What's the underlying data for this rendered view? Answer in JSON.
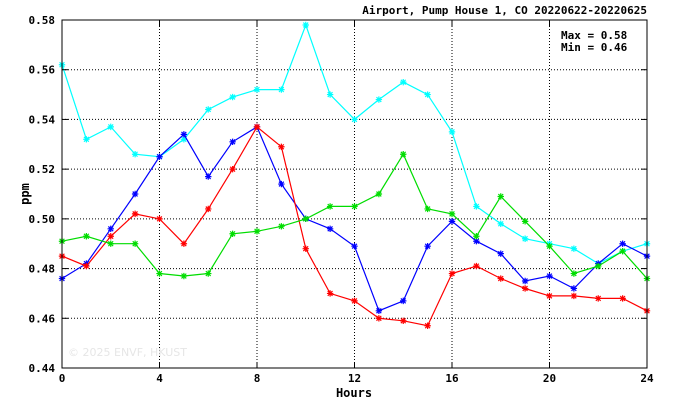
{
  "chart_data": {
    "type": "line",
    "title": "Airport, Pump House 1, CO 20220622-20220625",
    "xlabel": "Hours",
    "ylabel": "ppm",
    "xlim": [
      0,
      24
    ],
    "ylim": [
      0.44,
      0.58
    ],
    "xticks": [
      "0",
      "4",
      "8",
      "12",
      "16",
      "20",
      "24"
    ],
    "yticks": [
      "0.44",
      "0.46",
      "0.48",
      "0.50",
      "0.52",
      "0.54",
      "0.56",
      "0.58"
    ],
    "xtick_values": [
      0,
      4,
      8,
      12,
      16,
      20,
      24
    ],
    "ytick_values": [
      0.44,
      0.46,
      0.48,
      0.5,
      0.52,
      0.54,
      0.56,
      0.58
    ],
    "grid": true,
    "stats": {
      "max": "Max = 0.58",
      "min": "Min = 0.46"
    },
    "watermark": "© 2025 ENVF, HKUST",
    "x": [
      0,
      1,
      2,
      3,
      4,
      5,
      6,
      7,
      8,
      9,
      10,
      11,
      12,
      13,
      14,
      15,
      16,
      17,
      18,
      19,
      20,
      21,
      22,
      23,
      24
    ],
    "series": [
      {
        "color": "#00ffff",
        "values": [
          0.562,
          0.532,
          0.537,
          0.526,
          0.525,
          0.532,
          0.544,
          0.549,
          0.552,
          0.552,
          0.578,
          0.55,
          0.54,
          0.548,
          0.555,
          0.55,
          0.535,
          0.505,
          0.498,
          0.492,
          0.49,
          0.488,
          0.482,
          0.487,
          0.49
        ]
      },
      {
        "color": "#0000ff",
        "values": [
          0.476,
          0.482,
          0.496,
          0.51,
          0.525,
          0.534,
          0.517,
          0.531,
          0.537,
          0.514,
          0.5,
          0.496,
          0.489,
          0.463,
          0.467,
          0.489,
          0.499,
          0.491,
          0.486,
          0.475,
          0.477,
          0.472,
          0.482,
          0.49,
          0.485
        ]
      },
      {
        "color": "#ff0000",
        "values": [
          0.485,
          0.481,
          0.493,
          0.502,
          0.5,
          0.49,
          0.504,
          0.52,
          0.537,
          0.529,
          0.488,
          0.47,
          0.467,
          0.46,
          0.459,
          0.457,
          0.478,
          0.481,
          0.476,
          0.472,
          0.469,
          0.469,
          0.468,
          0.468,
          0.463
        ]
      },
      {
        "color": "#00dd00",
        "values": [
          0.491,
          0.493,
          0.49,
          0.49,
          0.478,
          0.477,
          0.478,
          0.494,
          0.495,
          0.497,
          0.5,
          0.505,
          0.505,
          0.51,
          0.526,
          0.504,
          0.502,
          0.493,
          0.509,
          0.499,
          0.489,
          0.478,
          0.481,
          0.487,
          0.476
        ]
      }
    ]
  }
}
